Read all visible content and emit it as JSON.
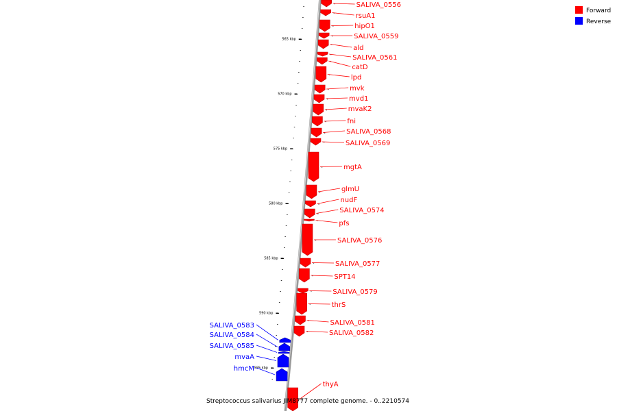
{
  "colors": {
    "forward": "#ff0000",
    "reverse": "#0000ff",
    "backbone": "#999999",
    "leader_forward": "#ff0000",
    "leader_reverse": "#0000ff"
  },
  "legend": {
    "forward_label": "Forward",
    "reverse_label": "Reverse"
  },
  "caption": "Streptococcus salivarius JIM8777 complete genome. - 0..2210574",
  "ticks": [
    "565 kbp",
    "570 kbp",
    "575 kbp",
    "580 kbp",
    "585 kbp",
    "590 kbp",
    "595 kbp"
  ],
  "genes": {
    "forward": [
      "SALIVA_0556",
      "rsuA1",
      "hipO1",
      "SALIVA_0559",
      "ald",
      "SALIVA_0561",
      "catD",
      "lpd",
      "mvk",
      "mvd1",
      "mvaK2",
      "fni",
      "SALIVA_0568",
      "SALIVA_0569",
      "mgtA",
      "glmU",
      "nudF",
      "SALIVA_0574",
      "pfs",
      "SALIVA_0576",
      "SALIVA_0577",
      "SPT14",
      "SALIVA_0579",
      "thrS",
      "SALIVA_0581",
      "SALIVA_0582",
      "thyA"
    ],
    "reverse": [
      "SALIVA_0583",
      "SALIVA_0584",
      "SALIVA_0585",
      "mvaA",
      "hmcM"
    ]
  }
}
